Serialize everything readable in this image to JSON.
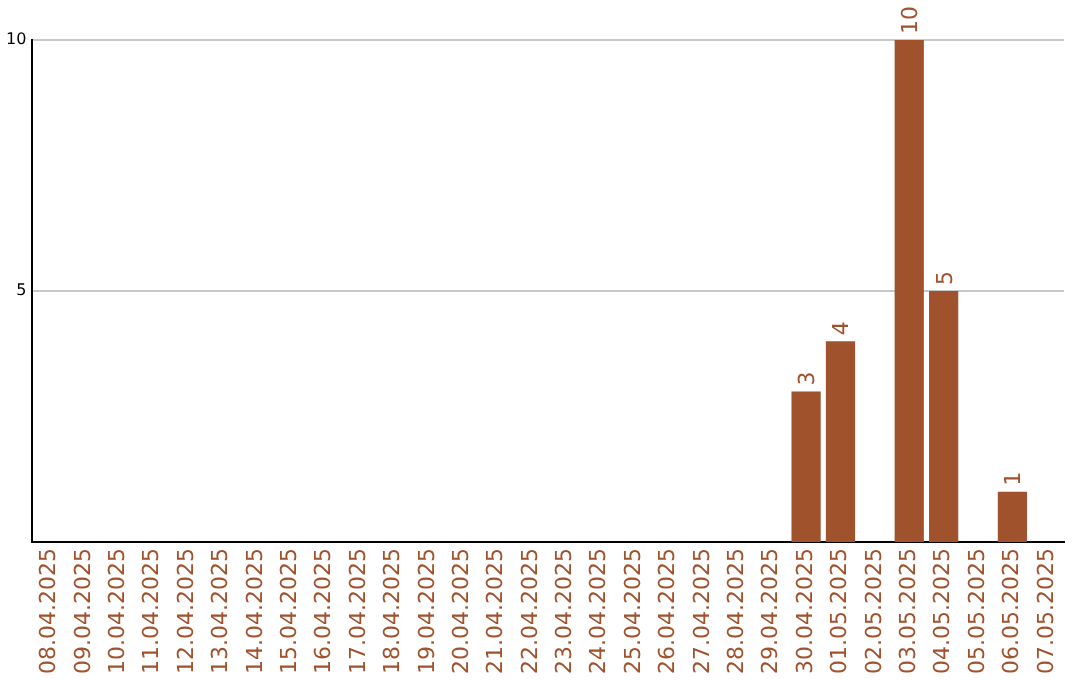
{
  "chart_data": {
    "type": "bar",
    "categories": [
      "08.04.2025",
      "09.04.2025",
      "10.04.2025",
      "11.04.2025",
      "12.04.2025",
      "13.04.2025",
      "14.04.2025",
      "15.04.2025",
      "16.04.2025",
      "17.04.2025",
      "18.04.2025",
      "19.04.2025",
      "20.04.2025",
      "21.04.2025",
      "22.04.2025",
      "23.04.2025",
      "24.04.2025",
      "25.04.2025",
      "26.04.2025",
      "27.04.2025",
      "28.04.2025",
      "29.04.2025",
      "30.04.2025",
      "01.05.2025",
      "02.05.2025",
      "03.05.2025",
      "04.05.2025",
      "05.05.2025",
      "06.05.2025",
      "07.05.2025"
    ],
    "values": [
      0,
      0,
      0,
      0,
      0,
      0,
      0,
      0,
      0,
      0,
      0,
      0,
      0,
      0,
      0,
      0,
      0,
      0,
      0,
      0,
      0,
      0,
      3,
      4,
      0,
      10,
      5,
      0,
      1,
      0
    ],
    "value_labels": [
      null,
      null,
      null,
      null,
      null,
      null,
      null,
      null,
      null,
      null,
      null,
      null,
      null,
      null,
      null,
      null,
      null,
      null,
      null,
      null,
      null,
      null,
      "3",
      "4",
      null,
      "10",
      "5",
      null,
      "1",
      null
    ],
    "color": "#a0522d",
    "ylim": [
      0,
      10
    ],
    "yticks": [
      5,
      10
    ],
    "grid": "y",
    "legend": false
  }
}
